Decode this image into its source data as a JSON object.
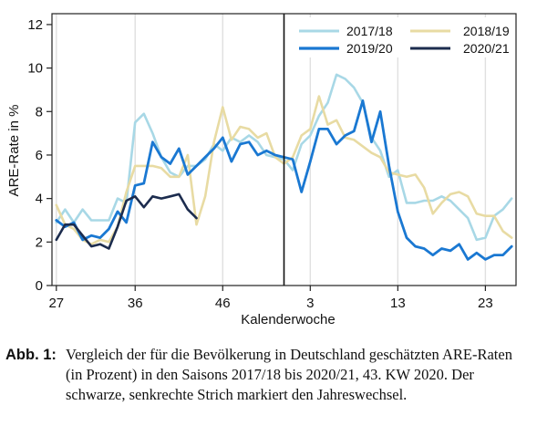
{
  "chart_data": {
    "type": "line",
    "ylabel": "ARE-Rate in %",
    "xlabel": "Kalenderwoche",
    "ylim": [
      0,
      12.5
    ],
    "yticks": [
      0,
      2,
      4,
      6,
      8,
      10,
      12
    ],
    "xticks": [
      {
        "pos": 0,
        "label": "27"
      },
      {
        "pos": 9,
        "label": "36"
      },
      {
        "pos": 19,
        "label": "46"
      },
      {
        "pos": 29,
        "label": "3"
      },
      {
        "pos": 39,
        "label": "13"
      },
      {
        "pos": 49,
        "label": "23"
      }
    ],
    "year_change_pos": 26,
    "x_range": [
      -0.5,
      52.5
    ],
    "legend": "top-right",
    "grid": "vertical",
    "series": [
      {
        "name": "2017/18",
        "color": "#a8d8e6",
        "width": 2.6,
        "values": [
          2.9,
          3.5,
          2.9,
          3.5,
          3.0,
          3.0,
          3.0,
          4.0,
          3.8,
          7.5,
          7.9,
          7.0,
          5.9,
          5.2,
          5.0,
          5.5,
          5.5,
          5.8,
          6.5,
          6.2,
          6.8,
          6.6,
          6.9,
          6.6,
          6.0,
          5.9,
          5.8,
          5.3,
          6.5,
          6.9,
          7.8,
          8.4,
          9.7,
          9.5,
          9.1,
          8.4,
          6.8,
          6.2,
          5.0,
          5.3,
          3.8,
          3.8,
          3.9,
          3.9,
          4.1,
          3.9,
          3.5,
          3.1,
          2.1,
          2.2,
          3.2,
          3.5,
          4.0
        ]
      },
      {
        "name": "2018/19",
        "color": "#e8dba3",
        "width": 2.6,
        "values": [
          3.7,
          2.8,
          2.6,
          2.1,
          1.9,
          2.1,
          2.0,
          2.7,
          4.3,
          5.5,
          5.5,
          5.5,
          5.4,
          5.0,
          5.0,
          6.0,
          2.8,
          4.1,
          6.6,
          8.2,
          6.7,
          7.3,
          7.2,
          6.8,
          7.0,
          5.9,
          5.6,
          5.9,
          6.9,
          7.2,
          8.7,
          7.4,
          7.6,
          6.8,
          6.7,
          6.4,
          6.1,
          5.9,
          5.2,
          5.1,
          5.0,
          5.1,
          4.5,
          3.3,
          3.8,
          4.2,
          4.3,
          4.1,
          3.3,
          3.2,
          3.2,
          2.5,
          2.2
        ]
      },
      {
        "name": "2019/20",
        "color": "#1a78d2",
        "width": 2.8,
        "values": [
          3.0,
          2.7,
          2.9,
          2.1,
          2.3,
          2.2,
          2.6,
          3.4,
          2.9,
          4.6,
          4.7,
          6.6,
          5.9,
          5.6,
          6.3,
          5.1,
          5.5,
          5.9,
          6.3,
          6.8,
          5.7,
          6.5,
          6.6,
          6.0,
          6.2,
          6.0,
          5.9,
          5.8,
          4.3,
          5.7,
          7.2,
          7.2,
          6.5,
          6.9,
          7.1,
          8.5,
          6.6,
          8.0,
          5.5,
          3.4,
          2.2,
          1.8,
          1.7,
          1.4,
          1.7,
          1.6,
          1.9,
          1.2,
          1.5,
          1.2,
          1.4,
          1.4,
          1.8
        ]
      },
      {
        "name": "2020/21",
        "color": "#1c2c4e",
        "width": 2.6,
        "values": [
          2.1,
          2.8,
          2.8,
          2.3,
          1.8,
          1.9,
          1.7,
          2.7,
          3.9,
          4.1,
          3.6,
          4.1,
          4.0,
          4.1,
          4.2,
          3.5,
          3.1
        ]
      }
    ]
  },
  "caption": {
    "label": "Abb. 1:",
    "text": "Vergleich der für die Bevölkerung in Deutschland geschätzten ARE-Raten (in Prozent) in den Saisons 2017/18 bis 2020/21, 43. KW 2020. Der schwarze, senkrechte Strich markiert den Jahreswechsel."
  }
}
